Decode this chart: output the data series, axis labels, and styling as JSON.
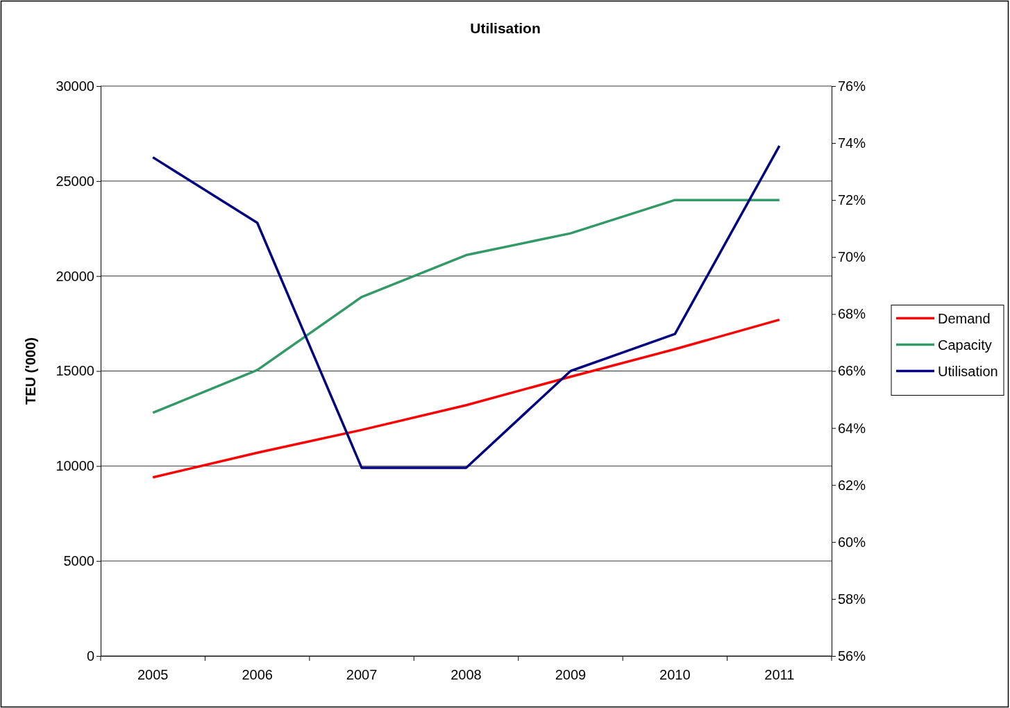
{
  "chart_data": {
    "type": "line",
    "title": "Utilisation",
    "ylabel": "TEU ('000)",
    "categories": [
      "2005",
      "2006",
      "2007",
      "2008",
      "2009",
      "2010",
      "2011"
    ],
    "series": [
      {
        "name": "Demand",
        "color": "#ff0000",
        "values": [
          9400,
          10700,
          11900,
          13200,
          14700,
          16150,
          17700
        ]
      },
      {
        "name": "Capacity",
        "color": "#339966",
        "values": [
          12800,
          15050,
          18900,
          21100,
          22250,
          24000,
          24000
        ]
      },
      {
        "name": "Utilisation",
        "color": "#000080",
        "axis": "y2",
        "values": [
          73.5,
          71.2,
          62.6,
          62.6,
          66.0,
          67.3,
          73.9
        ]
      }
    ],
    "ylim": [
      0,
      30000
    ],
    "yticks": [
      0,
      5000,
      10000,
      15000,
      20000,
      25000,
      30000
    ],
    "y2lim": [
      56,
      76
    ],
    "y2ticks": [
      {
        "value": 56,
        "label": "56%"
      },
      {
        "value": 58,
        "label": "58%"
      },
      {
        "value": 60,
        "label": "60%"
      },
      {
        "value": 62,
        "label": "62%"
      },
      {
        "value": 64,
        "label": "64%"
      },
      {
        "value": 66,
        "label": "66%"
      },
      {
        "value": 68,
        "label": "68%"
      },
      {
        "value": 70,
        "label": "70%"
      },
      {
        "value": 72,
        "label": "72%"
      },
      {
        "value": 74,
        "label": "74%"
      },
      {
        "value": 76,
        "label": "76%"
      }
    ],
    "grid": "y",
    "legend": "right",
    "marker": "none",
    "line_style": "solid"
  }
}
